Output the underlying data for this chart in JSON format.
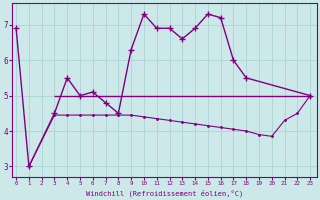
{
  "xlabel": "Windchill (Refroidissement éolien,°C)",
  "bg_color": "#cce8e8",
  "line_color": "#800080",
  "grid_color": "#aad4d4",
  "x_line1": [
    0,
    1,
    3,
    4,
    5,
    6,
    7,
    8,
    9,
    10,
    11,
    12,
    13,
    14,
    15,
    16,
    17,
    18,
    23
  ],
  "y_line1": [
    6.9,
    3.0,
    4.5,
    5.5,
    5.0,
    5.1,
    4.8,
    4.5,
    6.3,
    7.3,
    6.9,
    6.9,
    6.6,
    6.9,
    7.3,
    7.2,
    6.0,
    5.5,
    5.0
  ],
  "x_line2": [
    1,
    3,
    4,
    5,
    6,
    7,
    8,
    9,
    10,
    11,
    12,
    13,
    14,
    15,
    16,
    17,
    18,
    19,
    20,
    21,
    22,
    23
  ],
  "y_line2": [
    3.0,
    4.45,
    4.45,
    4.45,
    4.45,
    4.45,
    4.45,
    4.45,
    4.4,
    4.35,
    4.3,
    4.25,
    4.2,
    4.15,
    4.1,
    4.05,
    4.0,
    3.9,
    3.85,
    4.3,
    4.5,
    5.0
  ],
  "hline_y": 5.0,
  "hline_x_start": 3.0,
  "hline_x_end": 23.0,
  "xlim": [
    -0.3,
    23.5
  ],
  "ylim": [
    2.7,
    7.6
  ],
  "yticks": [
    3,
    4,
    5,
    6,
    7
  ],
  "xticks": [
    0,
    1,
    2,
    3,
    4,
    5,
    6,
    7,
    8,
    9,
    10,
    11,
    12,
    13,
    14,
    15,
    16,
    17,
    18,
    19,
    20,
    21,
    22,
    23
  ]
}
